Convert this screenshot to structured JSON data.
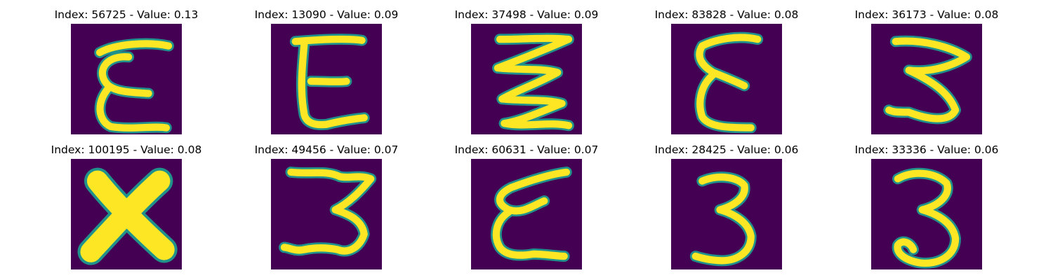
{
  "colors": {
    "background": "#440154",
    "stroke_edge": "#21918c",
    "stroke_core": "#fde725"
  },
  "panels": [
    {
      "title": "Index: 56725 - Value: 0.13",
      "glyph": "epsilon-slanted"
    },
    {
      "title": "Index: 13090 - Value: 0.09",
      "glyph": "E-no-middle-bar"
    },
    {
      "title": "Index: 37498 - Value: 0.09",
      "glyph": "zigzag"
    },
    {
      "title": "Index: 83828 - Value: 0.08",
      "glyph": "epsilon-narrow"
    },
    {
      "title": "Index: 36173 - Value: 0.08",
      "glyph": "three-angular"
    },
    {
      "title": "Index: 100195 - Value: 0.08",
      "glyph": "x-cross"
    },
    {
      "title": "Index: 49456 - Value: 0.07",
      "glyph": "three-wavy"
    },
    {
      "title": "Index: 60631 - Value: 0.07",
      "glyph": "epsilon-wavy"
    },
    {
      "title": "Index: 28425 - Value: 0.06",
      "glyph": "three-round"
    },
    {
      "title": "Index: 33336 - Value: 0.06",
      "glyph": "three-curled"
    }
  ]
}
